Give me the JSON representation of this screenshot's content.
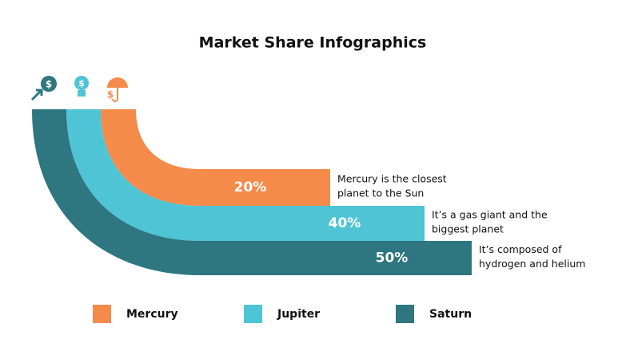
{
  "chart_data": {
    "type": "curved-bar",
    "title": "Market Share Infographics",
    "series": [
      {
        "name": "Mercury",
        "color": "#f48b4a",
        "values": [
          20
        ],
        "value_labels": [
          "20%"
        ],
        "annotation": [
          "Mercury is the closest",
          "planet to the Sun"
        ]
      },
      {
        "name": "Jupiter",
        "color": "#4fc4d4",
        "values": [
          40
        ],
        "value_labels": [
          "40%"
        ],
        "annotation": [
          "It’s a gas giant and the",
          "biggest planet"
        ]
      },
      {
        "name": "Saturn",
        "color": "#2e7680",
        "values": [
          50
        ],
        "value_labels": [
          "50%"
        ],
        "annotation": [
          "It’s composed of",
          "hydrogen and helium"
        ]
      }
    ]
  }
}
